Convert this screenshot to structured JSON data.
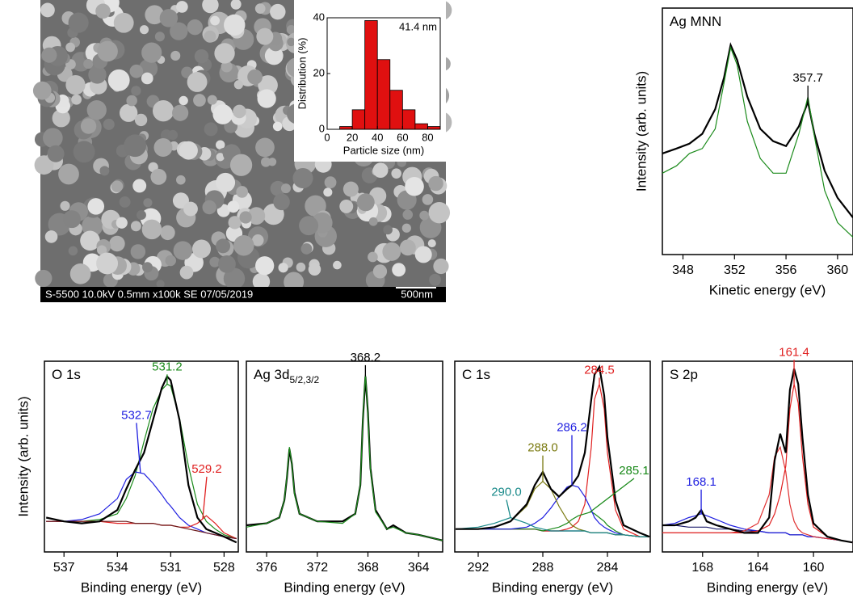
{
  "image": {
    "caption": "S-5500 10.0kV 0.5mm x100k SE 07/05/2019",
    "scale_bar": "500nm"
  },
  "chart_data": [
    {
      "type": "histogram",
      "bins": [
        10,
        20,
        30,
        40,
        50,
        60,
        70,
        80,
        90
      ],
      "values": [
        1,
        7,
        39,
        25,
        14,
        7,
        2,
        1
      ],
      "color": "#e01010",
      "xlim": [
        0,
        90
      ],
      "xticks": [
        0,
        20,
        40,
        60,
        80
      ],
      "ylim": [
        0,
        40
      ],
      "yticks": [
        0,
        20,
        40
      ],
      "xlabel": "Particle size (nm)",
      "ylabel": "Distribution (%)",
      "annotation": "41.4 nm"
    },
    {
      "type": "line",
      "title": "Ag MNN",
      "xlabel": "Kinetic energy (eV)",
      "ylabel": "Intensity (arb. units)",
      "xlim": [
        346.4,
        361.2
      ],
      "xticks": [
        348,
        352,
        356,
        360
      ],
      "ylim": [
        0,
        100
      ],
      "x": [
        346.4,
        347.5,
        348.5,
        349.5,
        350.5,
        351.2,
        351.7,
        352.2,
        353,
        354,
        355,
        356,
        357,
        357.7,
        358.2,
        359,
        360,
        361.2
      ],
      "series": [
        {
          "color": "#000000",
          "values": [
            41,
            43,
            45,
            49,
            59,
            72,
            85,
            79,
            64,
            51,
            46,
            44,
            52,
            62,
            49,
            34,
            23,
            15
          ]
        },
        {
          "color": "#1a8a1a",
          "values": [
            33,
            36,
            41,
            43,
            51,
            70,
            84,
            77,
            54,
            39,
            33,
            33,
            49,
            64,
            48,
            26,
            13,
            7
          ]
        }
      ],
      "peaks": [
        {
          "value": 357.7,
          "label": "357.7",
          "color": "#000000"
        }
      ]
    },
    {
      "type": "line",
      "title": "O 1s",
      "xlabel": "Binding energy (eV)",
      "ylabel": "Intensity (arb. units)",
      "xlim": [
        538.1,
        527.2
      ],
      "xticks": [
        537,
        534,
        531,
        528
      ],
      "ylim": [
        0,
        100
      ],
      "x": [
        538,
        537,
        536,
        535,
        534,
        533.5,
        533,
        532.5,
        532,
        531.5,
        531.2,
        531,
        530.5,
        530,
        529.5,
        529,
        528.5,
        528,
        527.3
      ],
      "series": [
        {
          "color": "#000000",
          "values": [
            18,
            16,
            15,
            16,
            22,
            33,
            43,
            52,
            69,
            86,
            92,
            90,
            69,
            35,
            18,
            12,
            10,
            8,
            5
          ]
        },
        {
          "color": "#1a8a1a",
          "values": [
            16,
            16,
            16,
            17,
            20,
            28,
            40,
            58,
            75,
            85,
            88,
            87,
            70,
            45,
            25,
            16,
            12,
            9,
            7
          ]
        },
        {
          "color": "#1f1fe0",
          "values": [
            16,
            16,
            17,
            20,
            28,
            38,
            42,
            41,
            36,
            30,
            26,
            24,
            18,
            14,
            12,
            10,
            9,
            8,
            7
          ]
        },
        {
          "color": "#e02020",
          "values": [
            16,
            16,
            16,
            16,
            15,
            15,
            15,
            15,
            15,
            14,
            14,
            14,
            13,
            13,
            15,
            19,
            15,
            10,
            7
          ]
        },
        {
          "color": "#6b1a1a",
          "values": [
            16,
            16,
            16,
            16,
            16,
            16,
            15,
            15,
            15,
            14,
            14,
            14,
            13,
            12,
            11,
            10,
            9,
            8,
            7
          ]
        }
      ],
      "peaks": [
        {
          "value": 531.2,
          "label": "531.2",
          "color": "#1a8a1a"
        },
        {
          "value": 532.7,
          "label": "532.7",
          "color": "#1f1fe0"
        },
        {
          "value": 529.2,
          "label": "529.2",
          "color": "#e02020"
        }
      ]
    },
    {
      "type": "line",
      "title": "Ag 3d",
      "title_subscript": "5/2,3/2",
      "xlabel": "Binding energy (eV)",
      "xlim": [
        377.6,
        362.1
      ],
      "xticks": [
        376,
        372,
        368,
        364
      ],
      "ylim": [
        0,
        100
      ],
      "x": [
        377.6,
        376,
        375,
        374.6,
        374.4,
        374.2,
        374,
        373.8,
        373.4,
        372,
        370,
        369,
        368.6,
        368.4,
        368.2,
        368,
        367.8,
        367.4,
        366.5,
        366,
        365,
        364,
        362.1
      ],
      "series": [
        {
          "color": "#000000",
          "values": [
            14,
            15,
            18,
            27,
            39,
            54,
            46,
            31,
            20,
            16,
            16,
            20,
            35,
            69,
            92,
            73,
            44,
            22,
            12,
            14,
            10,
            9,
            6
          ]
        },
        {
          "color": "#1a8a1a",
          "values": [
            13,
            15,
            18,
            27,
            40,
            55,
            46,
            30,
            20,
            16,
            15,
            20,
            35,
            70,
            93,
            72,
            43,
            21,
            12,
            13,
            10,
            9,
            6
          ]
        }
      ],
      "peaks": [
        {
          "value": 368.2,
          "label": "368.2",
          "color": "#000000"
        }
      ]
    },
    {
      "type": "line",
      "title": "C 1s",
      "xlabel": "Binding energy (eV)",
      "xlim": [
        293.45,
        281.35
      ],
      "xticks": [
        292,
        288,
        284
      ],
      "ylim": [
        0,
        100
      ],
      "x": [
        293.4,
        292,
        291,
        290,
        289,
        288.5,
        288,
        287.5,
        287,
        286.5,
        286.2,
        285.8,
        285.4,
        285,
        284.8,
        284.5,
        284.2,
        284,
        283.5,
        283,
        282,
        281.4
      ],
      "series": [
        {
          "color": "#000000",
          "values": [
            12,
            12,
            13,
            16,
            25,
            35,
            42,
            33,
            29,
            33,
            35,
            40,
            52,
            80,
            93,
            97,
            82,
            60,
            27,
            14,
            10,
            8
          ]
        },
        {
          "color": "#1a1a6b",
          "values": [
            12,
            12,
            12,
            12,
            12,
            12,
            11,
            11,
            11,
            11,
            11,
            11,
            11,
            10,
            10,
            10,
            10,
            10,
            9,
            9,
            8,
            8
          ]
        },
        {
          "color": "#e02020",
          "values": [
            12,
            12,
            12,
            12,
            12,
            12,
            11,
            11,
            11,
            12,
            13,
            16,
            25,
            55,
            80,
            88,
            75,
            52,
            22,
            12,
            8,
            8
          ]
        },
        {
          "color": "#1a8a1a",
          "values": [
            12,
            12,
            12,
            12,
            12,
            12,
            11,
            12,
            13,
            15,
            17,
            19,
            20,
            21,
            20,
            18,
            16,
            14,
            11,
            9,
            8,
            8
          ]
        },
        {
          "color": "#1f1fe0",
          "values": [
            12,
            12,
            12,
            12,
            13,
            15,
            18,
            23,
            29,
            34,
            35,
            34,
            29,
            22,
            18,
            15,
            13,
            12,
            10,
            9,
            8,
            8
          ]
        },
        {
          "color": "#7a7a10",
          "values": [
            12,
            12,
            13,
            16,
            24,
            33,
            37,
            33,
            24,
            17,
            14,
            12,
            11,
            10,
            10,
            10,
            10,
            10,
            9,
            9,
            8,
            8
          ]
        },
        {
          "color": "#1a8a8a",
          "values": [
            12,
            13,
            15,
            18,
            15,
            13,
            12,
            11,
            11,
            11,
            11,
            11,
            11,
            10,
            10,
            10,
            10,
            10,
            9,
            9,
            8,
            8
          ]
        }
      ],
      "peaks": [
        {
          "value": 284.5,
          "label": "284.5",
          "color": "#e02020"
        },
        {
          "value": 285.1,
          "label": "285.1",
          "color": "#1a8a1a"
        },
        {
          "value": 286.2,
          "label": "286.2",
          "color": "#1f1fe0"
        },
        {
          "value": 288.0,
          "label": "288.0",
          "color": "#7a7a10"
        },
        {
          "value": 290.0,
          "label": "290.0",
          "color": "#1a8a8a"
        }
      ]
    },
    {
      "type": "line",
      "title": "S 2p",
      "xlabel": "Binding energy (eV)",
      "xlim": [
        170.9,
        157.15
      ],
      "xticks": [
        168,
        164,
        160
      ],
      "ylim": [
        0,
        100
      ],
      "x": [
        170.9,
        170,
        169,
        168.5,
        168.1,
        167.7,
        167,
        166,
        165,
        164,
        163.2,
        162.8,
        162.4,
        162,
        161.7,
        161.4,
        161.1,
        160.8,
        160.4,
        160,
        159,
        158,
        157.2
      ],
      "series": [
        {
          "color": "#000000",
          "values": [
            14,
            14,
            16,
            18,
            22,
            16,
            14,
            12,
            10,
            10,
            18,
            48,
            62,
            52,
            85,
            96,
            88,
            60,
            30,
            15,
            8,
            6,
            5
          ]
        },
        {
          "color": "#1a1a6b",
          "values": [
            14,
            14,
            13,
            13,
            13,
            13,
            12,
            12,
            11,
            11,
            10,
            10,
            10,
            10,
            9,
            9,
            9,
            9,
            8,
            8,
            7,
            6,
            5
          ]
        },
        {
          "color": "#1f1fe0",
          "values": [
            14,
            15,
            18,
            19,
            20,
            19,
            17,
            14,
            12,
            11,
            10,
            10,
            10,
            10,
            9,
            9,
            9,
            9,
            8,
            8,
            7,
            6,
            5
          ]
        },
        {
          "color": "#e02020",
          "values": [
            10,
            10,
            10,
            10,
            10,
            10,
            10,
            10,
            10,
            11,
            14,
            20,
            30,
            45,
            75,
            88,
            78,
            50,
            25,
            13,
            8,
            6,
            5
          ]
        },
        {
          "color": "#e03030",
          "values": [
            10,
            10,
            10,
            10,
            10,
            10,
            10,
            10,
            11,
            15,
            30,
            50,
            55,
            42,
            25,
            16,
            12,
            10,
            9,
            8,
            7,
            6,
            5
          ]
        }
      ],
      "peaks": [
        {
          "value": 161.4,
          "label": "161.4",
          "color": "#e02020"
        },
        {
          "value": 168.1,
          "label": "168.1",
          "color": "#1f1fe0"
        }
      ]
    }
  ]
}
